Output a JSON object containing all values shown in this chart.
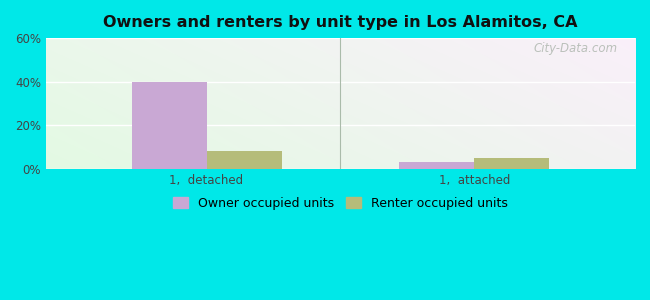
{
  "title": "Owners and renters by unit type in Los Alamitos, CA",
  "categories": [
    "1,  detached",
    "1,  attached"
  ],
  "owner_values": [
    40,
    3
  ],
  "renter_values": [
    8,
    5
  ],
  "owner_color": "#c9a8d4",
  "renter_color": "#b5bc7a",
  "ylim": [
    0,
    60
  ],
  "yticks": [
    0,
    20,
    40,
    60
  ],
  "ytick_labels": [
    "0%",
    "20%",
    "40%",
    "60%"
  ],
  "bar_width": 0.28,
  "outer_bg": "#00e8e8",
  "plot_bg_topleft": "#d6ecd6",
  "plot_bg_topright": "#eaf5f0",
  "plot_bg_bottom": "#f8fff8",
  "watermark": "City-Data.com",
  "legend_owner": "Owner occupied units",
  "legend_renter": "Renter occupied units",
  "xlim": [
    -0.6,
    1.6
  ]
}
